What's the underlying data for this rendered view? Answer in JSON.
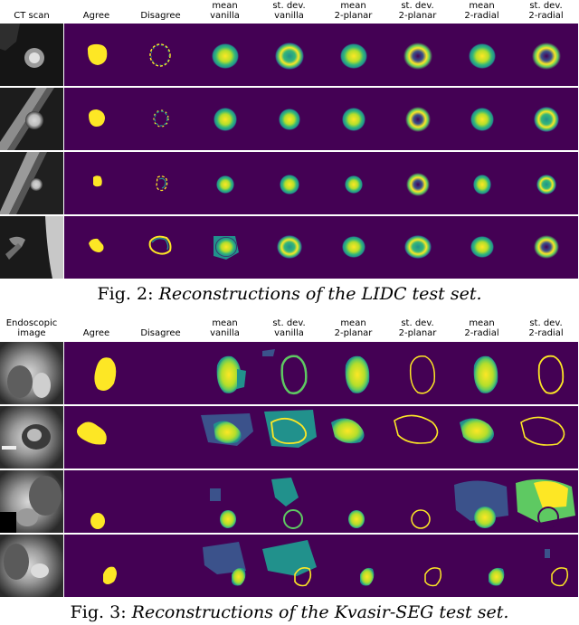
{
  "figure2": {
    "column_headers": [
      "CT scan",
      "Agree",
      "Disagree",
      "mean\nvanilla",
      "st. dev.\nvanilla",
      "mean\n2-planar",
      "st. dev.\n2-planar",
      "mean\n2-radial",
      "st. dev.\n2-radial"
    ],
    "caption_label": "Fig. 2:",
    "caption_text": "Reconstructions of the LIDC test set."
  },
  "figure3": {
    "column_headers": [
      "Endoscopic\nimage",
      "Agree",
      "Disagree",
      "mean\nvanilla",
      "st. dev.\nvanilla",
      "mean\n2-planar",
      "st. dev.\n2-planar",
      "mean\n2-radial",
      "st. dev.\n2-radial"
    ],
    "caption_label": "Fig. 3:",
    "caption_text": "Reconstructions of the Kvasir-SEG test set."
  },
  "colors": {
    "background": "#440154",
    "yellow": "#fde725",
    "green": "#5ec962",
    "teal": "#21918c",
    "blue": "#3b528b"
  }
}
